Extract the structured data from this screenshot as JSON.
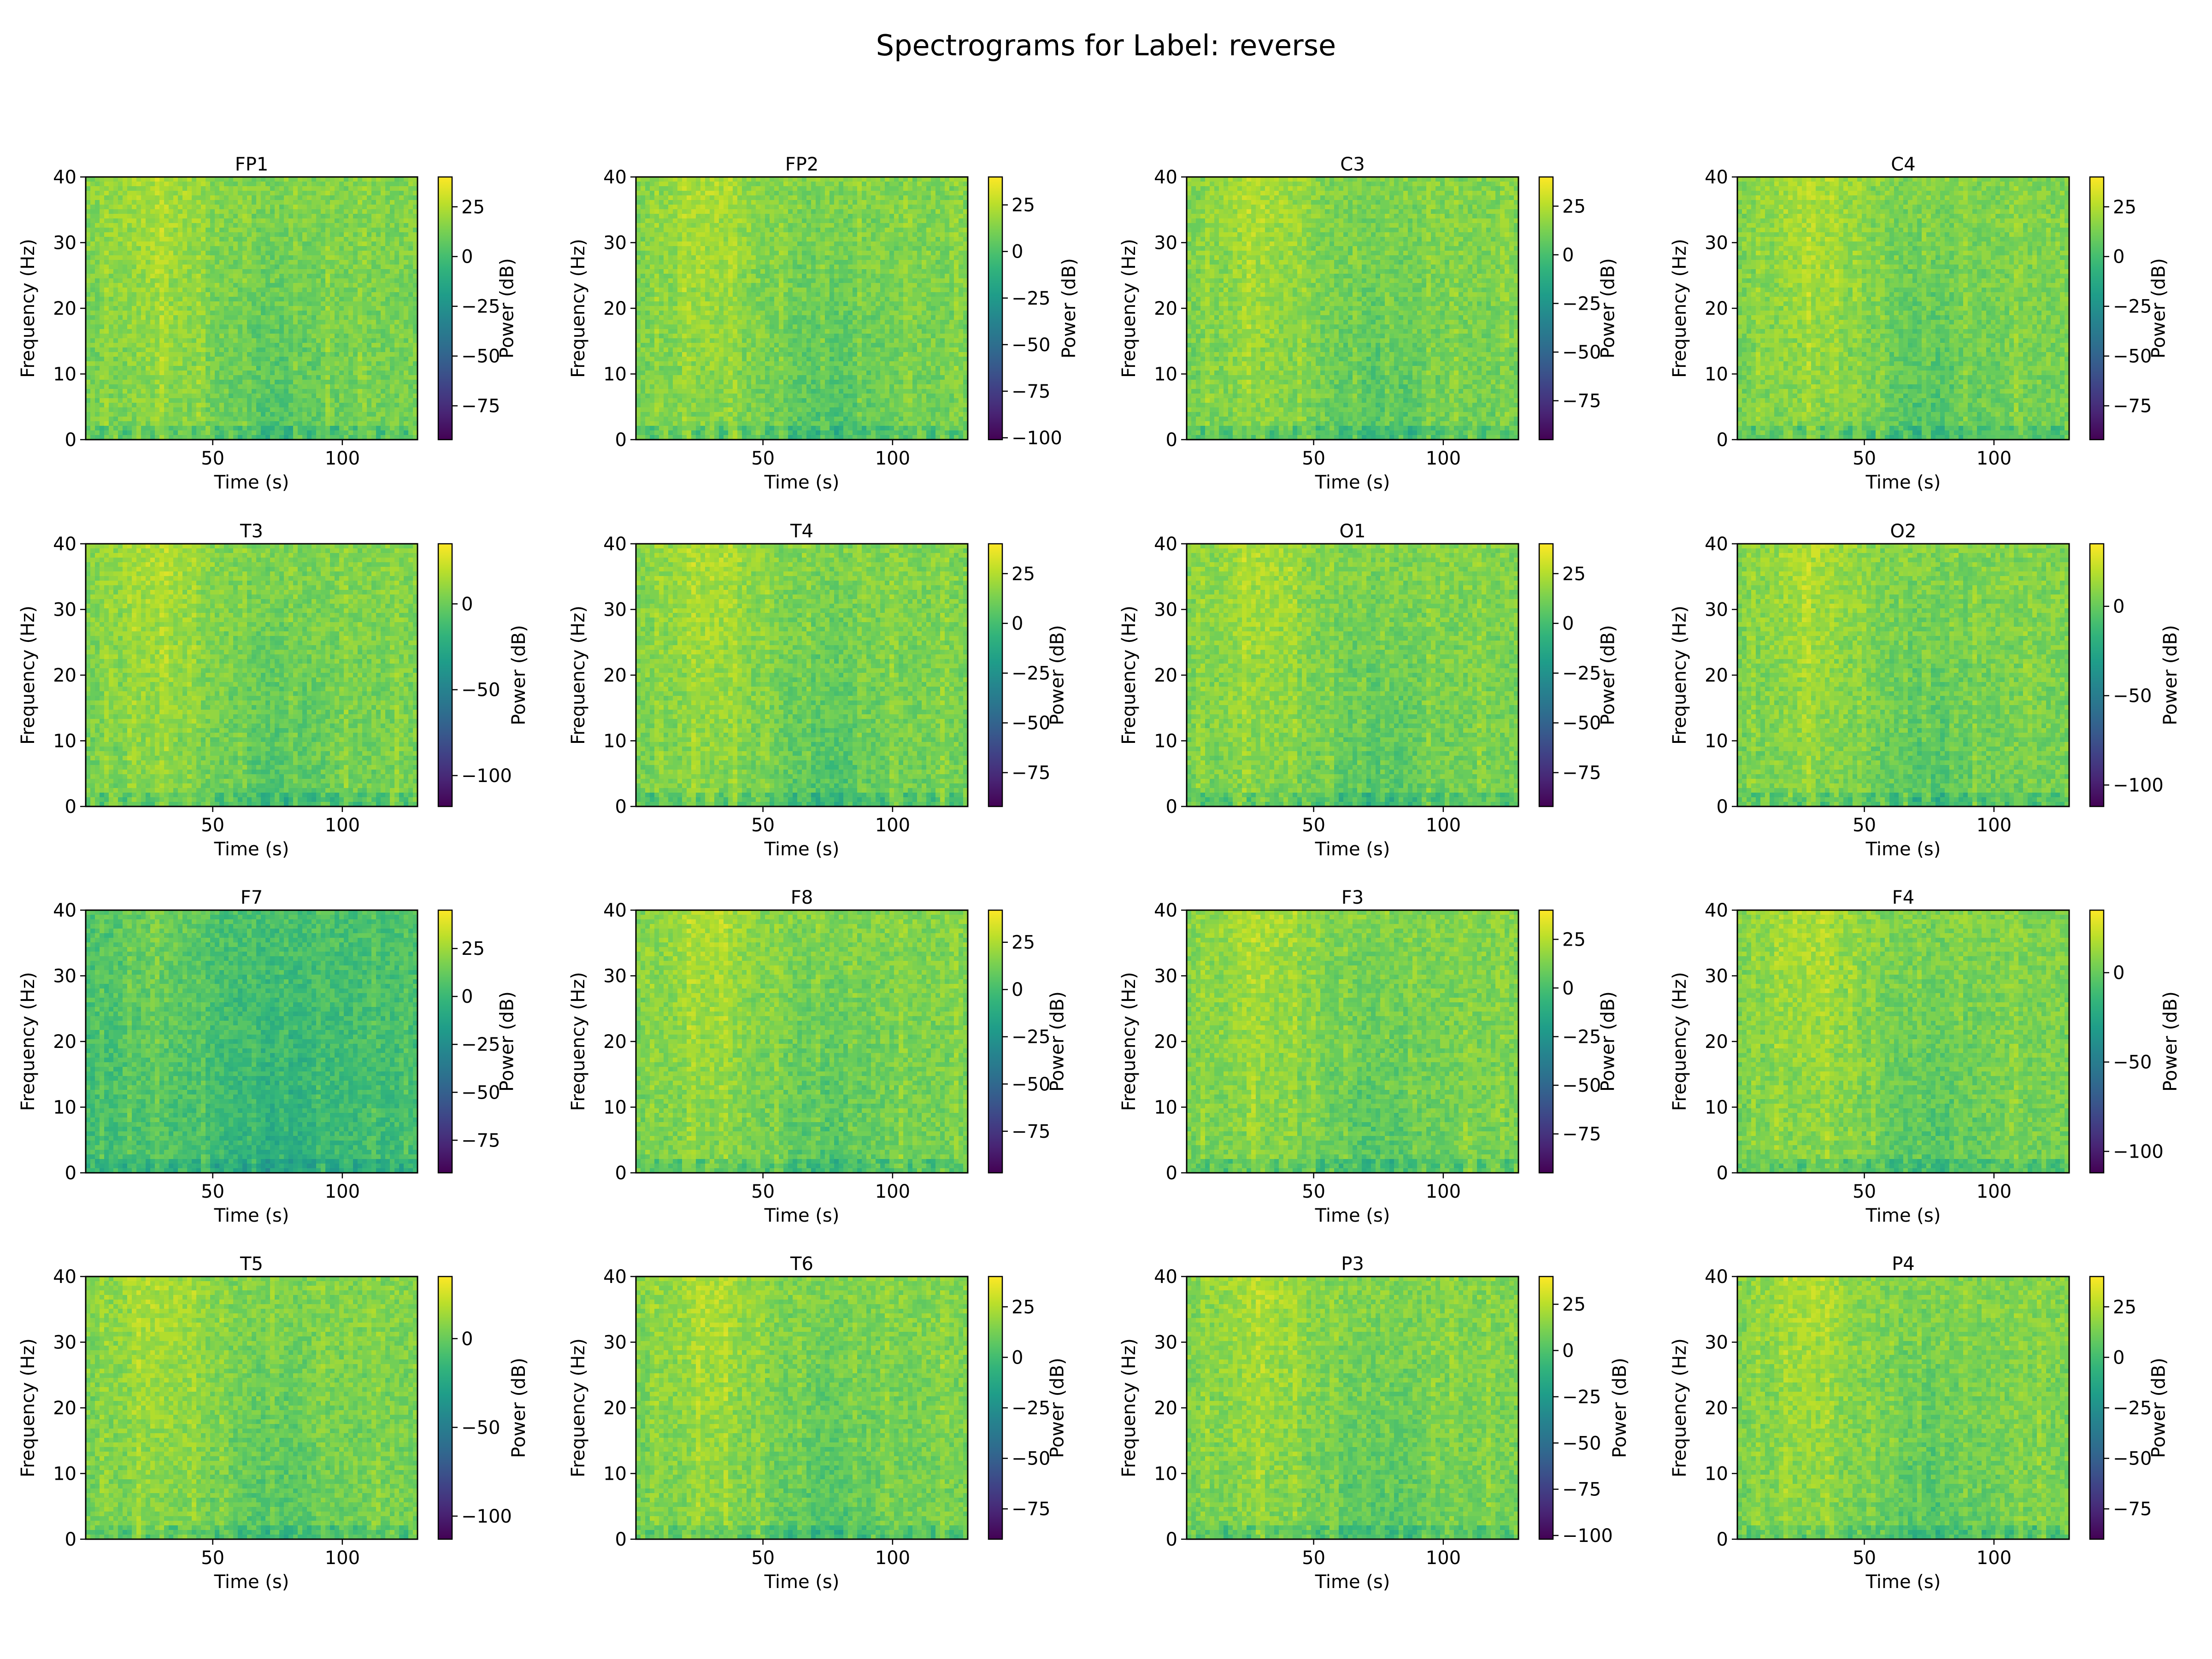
{
  "figure": {
    "title": "Spectrograms for Label: reverse"
  },
  "chart_data": {
    "type": "heatmap",
    "colormap": "viridis",
    "colormap_stops": [
      "#440154",
      "#482878",
      "#3e4989",
      "#31688e",
      "#26828e",
      "#1f9e89",
      "#35b779",
      "#6ece58",
      "#b5de2b",
      "#fde725"
    ],
    "xlabel": "Time (s)",
    "ylabel": "Frequency (Hz)",
    "colorbar_label": "Power (dB)",
    "xlim": [
      1,
      129
    ],
    "ylim": [
      0,
      40
    ],
    "x_ticks": [
      50,
      100
    ],
    "y_ticks": [
      0,
      10,
      20,
      30,
      40
    ],
    "grid": false,
    "panels": [
      {
        "channel": "FP1",
        "cbar_range": [
          -92,
          40
        ],
        "cbar_ticks": [
          25,
          0,
          -25,
          -50,
          -75
        ]
      },
      {
        "channel": "FP2",
        "cbar_range": [
          -101,
          40
        ],
        "cbar_ticks": [
          25,
          0,
          -25,
          -50,
          -75,
          -100
        ]
      },
      {
        "channel": "C3",
        "cbar_range": [
          -95,
          40
        ],
        "cbar_ticks": [
          25,
          0,
          -25,
          -50,
          -75
        ]
      },
      {
        "channel": "C4",
        "cbar_range": [
          -92,
          40
        ],
        "cbar_ticks": [
          25,
          0,
          -25,
          -50,
          -75
        ]
      },
      {
        "channel": "T3",
        "cbar_range": [
          -118,
          35
        ],
        "cbar_ticks": [
          0,
          -50,
          -100
        ]
      },
      {
        "channel": "T4",
        "cbar_range": [
          -92,
          40
        ],
        "cbar_ticks": [
          25,
          0,
          -25,
          -50,
          -75
        ]
      },
      {
        "channel": "O1",
        "cbar_range": [
          -92,
          40
        ],
        "cbar_ticks": [
          25,
          0,
          -25,
          -50,
          -75
        ]
      },
      {
        "channel": "O2",
        "cbar_range": [
          -112,
          35
        ],
        "cbar_ticks": [
          0,
          -50,
          -100
        ]
      },
      {
        "channel": "F7",
        "cbar_range": [
          -92,
          45
        ],
        "cbar_ticks": [
          25,
          0,
          -25,
          -50,
          -75
        ]
      },
      {
        "channel": "F8",
        "cbar_range": [
          -97,
          42
        ],
        "cbar_ticks": [
          25,
          0,
          -25,
          -50,
          -75
        ]
      },
      {
        "channel": "F3",
        "cbar_range": [
          -95,
          40
        ],
        "cbar_ticks": [
          25,
          0,
          -25,
          -50,
          -75
        ]
      },
      {
        "channel": "F4",
        "cbar_range": [
          -112,
          35
        ],
        "cbar_ticks": [
          0,
          -50,
          -100
        ]
      },
      {
        "channel": "T5",
        "cbar_range": [
          -113,
          35
        ],
        "cbar_ticks": [
          0,
          -50,
          -100
        ]
      },
      {
        "channel": "T6",
        "cbar_range": [
          -90,
          40
        ],
        "cbar_ticks": [
          25,
          0,
          -25,
          -50,
          -75
        ]
      },
      {
        "channel": "P3",
        "cbar_range": [
          -102,
          40
        ],
        "cbar_ticks": [
          25,
          0,
          -25,
          -50,
          -75,
          -100
        ]
      },
      {
        "channel": "P4",
        "cbar_range": [
          -90,
          40
        ],
        "cbar_ticks": [
          25,
          0,
          -25,
          -50,
          -75
        ]
      }
    ]
  }
}
